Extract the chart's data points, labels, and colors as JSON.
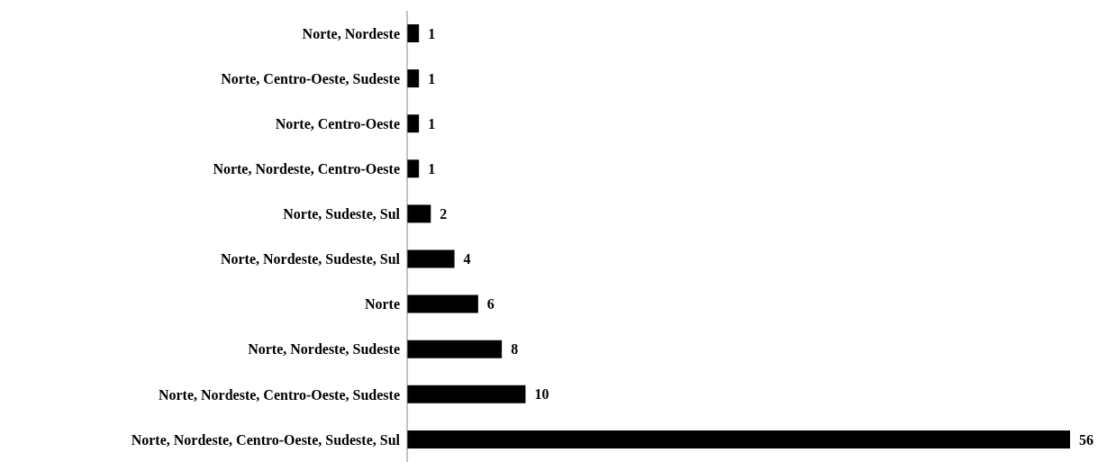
{
  "chart_data": {
    "type": "bar",
    "orientation": "horizontal",
    "categories": [
      "Norte, Nordeste",
      "Norte, Centro-Oeste, Sudeste",
      "Norte, Centro-Oeste",
      "Norte, Nordeste, Centro-Oeste",
      "Norte, Sudeste, Sul",
      "Norte, Nordeste, Sudeste, Sul",
      "Norte",
      "Norte, Nordeste, Sudeste",
      "Norte, Nordeste, Centro-Oeste, Sudeste",
      "Norte, Nordeste, Centro-Oeste, Sudeste, Sul"
    ],
    "values": [
      1,
      1,
      1,
      1,
      2,
      4,
      6,
      8,
      10,
      56
    ],
    "color": "#000000",
    "data_labels": true
  }
}
